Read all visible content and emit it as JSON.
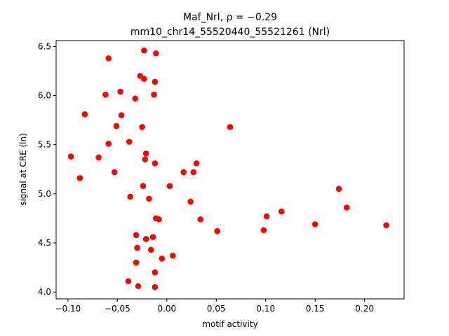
{
  "chart_data": {
    "type": "scatter",
    "title_line1": "Maf_Nrl, ρ = −0.29",
    "title_line2": "mm10_chr14_55520440_55521261 (Nrl)",
    "xlabel": "motif activity",
    "ylabel": "signal at CRE (ln)",
    "xlim": [
      -0.112,
      0.24
    ],
    "ylim": [
      3.93,
      6.56
    ],
    "xticks": [
      -0.1,
      -0.05,
      0.0,
      0.05,
      0.1,
      0.15,
      0.2
    ],
    "xtick_labels": [
      "−0.10",
      "−0.05",
      "0.00",
      "0.05",
      "0.10",
      "0.15",
      "0.20"
    ],
    "yticks": [
      4.0,
      4.5,
      5.0,
      5.5,
      6.0,
      6.5
    ],
    "ytick_labels": [
      "4.0",
      "4.5",
      "5.0",
      "5.5",
      "6.0",
      "6.5"
    ],
    "grid": false,
    "marker_color": "#ff0000",
    "points": [
      {
        "x": -0.023,
        "y": 6.46
      },
      {
        "x": -0.011,
        "y": 6.43
      },
      {
        "x": -0.059,
        "y": 6.38
      },
      {
        "x": -0.027,
        "y": 6.2
      },
      {
        "x": -0.023,
        "y": 6.17
      },
      {
        "x": -0.012,
        "y": 6.14
      },
      {
        "x": -0.047,
        "y": 6.04
      },
      {
        "x": -0.062,
        "y": 6.01
      },
      {
        "x": -0.013,
        "y": 6.01
      },
      {
        "x": -0.032,
        "y": 5.97
      },
      {
        "x": -0.083,
        "y": 5.81
      },
      {
        "x": -0.046,
        "y": 5.8
      },
      {
        "x": -0.051,
        "y": 5.69
      },
      {
        "x": -0.025,
        "y": 5.68
      },
      {
        "x": 0.064,
        "y": 5.68
      },
      {
        "x": -0.038,
        "y": 5.53
      },
      {
        "x": -0.059,
        "y": 5.51
      },
      {
        "x": -0.021,
        "y": 5.41
      },
      {
        "x": -0.097,
        "y": 5.38
      },
      {
        "x": -0.069,
        "y": 5.37
      },
      {
        "x": -0.022,
        "y": 5.35
      },
      {
        "x": -0.012,
        "y": 5.31
      },
      {
        "x": 0.03,
        "y": 5.31
      },
      {
        "x": -0.053,
        "y": 5.22
      },
      {
        "x": 0.017,
        "y": 5.22
      },
      {
        "x": 0.027,
        "y": 5.22
      },
      {
        "x": -0.088,
        "y": 5.16
      },
      {
        "x": -0.024,
        "y": 5.08
      },
      {
        "x": 0.003,
        "y": 5.08
      },
      {
        "x": 0.174,
        "y": 5.05
      },
      {
        "x": -0.037,
        "y": 4.97
      },
      {
        "x": -0.018,
        "y": 4.95
      },
      {
        "x": 0.024,
        "y": 4.92
      },
      {
        "x": 0.182,
        "y": 4.86
      },
      {
        "x": 0.116,
        "y": 4.82
      },
      {
        "x": 0.101,
        "y": 4.77
      },
      {
        "x": -0.011,
        "y": 4.75
      },
      {
        "x": -0.008,
        "y": 4.74
      },
      {
        "x": 0.034,
        "y": 4.74
      },
      {
        "x": 0.15,
        "y": 4.69
      },
      {
        "x": 0.222,
        "y": 4.68
      },
      {
        "x": 0.051,
        "y": 4.62
      },
      {
        "x": 0.098,
        "y": 4.63
      },
      {
        "x": -0.031,
        "y": 4.58
      },
      {
        "x": -0.014,
        "y": 4.56
      },
      {
        "x": -0.021,
        "y": 4.54
      },
      {
        "x": -0.03,
        "y": 4.45
      },
      {
        "x": -0.016,
        "y": 4.43
      },
      {
        "x": 0.006,
        "y": 4.37
      },
      {
        "x": -0.005,
        "y": 4.34
      },
      {
        "x": -0.031,
        "y": 4.3
      },
      {
        "x": -0.012,
        "y": 4.2
      },
      {
        "x": -0.039,
        "y": 4.11
      },
      {
        "x": -0.029,
        "y": 4.06
      },
      {
        "x": -0.012,
        "y": 4.05
      }
    ]
  }
}
